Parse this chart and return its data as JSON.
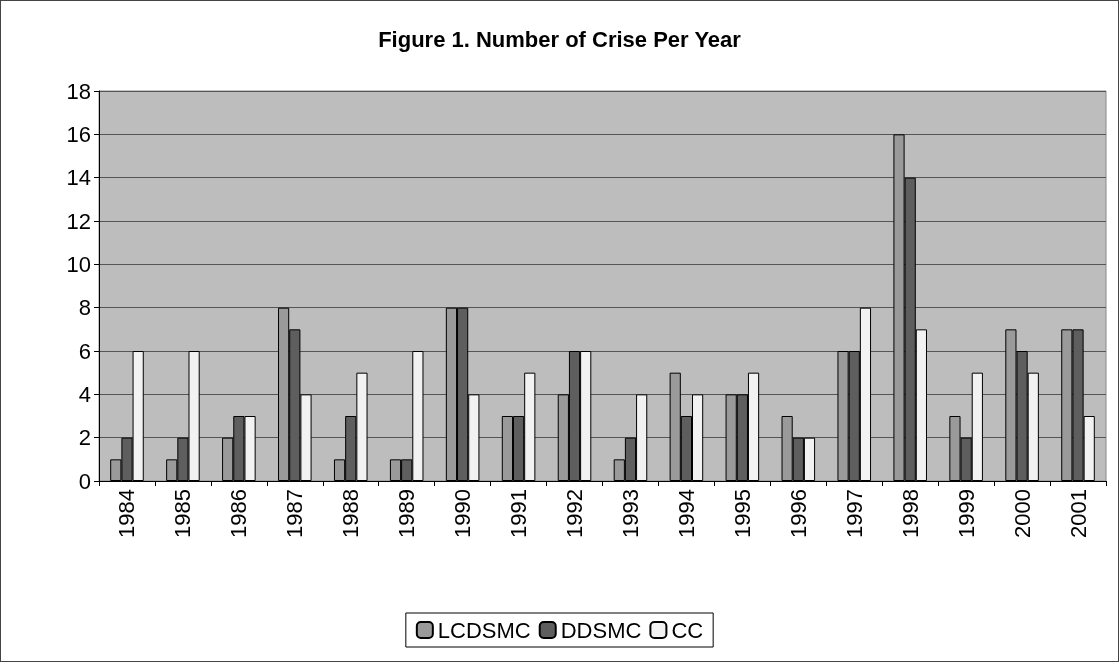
{
  "chart_data": {
    "type": "bar",
    "title": "Figure 1. Number of Crise Per Year",
    "categories": [
      "1984",
      "1985",
      "1986",
      "1987",
      "1988",
      "1989",
      "1990",
      "1991",
      "1992",
      "1993",
      "1994",
      "1995",
      "1996",
      "1997",
      "1998",
      "1999",
      "2000",
      "2001"
    ],
    "series": [
      {
        "name": "LCDSMC",
        "color": "#9a9a9a",
        "values": [
          1,
          1,
          2,
          8,
          1,
          1,
          8,
          3,
          4,
          1,
          5,
          4,
          3,
          6,
          16,
          3,
          7,
          7
        ]
      },
      {
        "name": "DDSMC",
        "color": "#5e5e5e",
        "values": [
          2,
          2,
          3,
          7,
          3,
          1,
          8,
          3,
          6,
          2,
          3,
          4,
          2,
          6,
          14,
          2,
          6,
          7
        ]
      },
      {
        "name": "CC",
        "color": "#f2f2f2",
        "values": [
          6,
          6,
          3,
          4,
          5,
          6,
          4,
          5,
          6,
          4,
          4,
          5,
          2,
          8,
          7,
          5,
          5,
          3
        ]
      }
    ],
    "ylim": [
      0,
      18
    ],
    "yticks": [
      0,
      2,
      4,
      6,
      8,
      10,
      12,
      14,
      16,
      18
    ],
    "grid": "y",
    "legend": "bottom"
  }
}
